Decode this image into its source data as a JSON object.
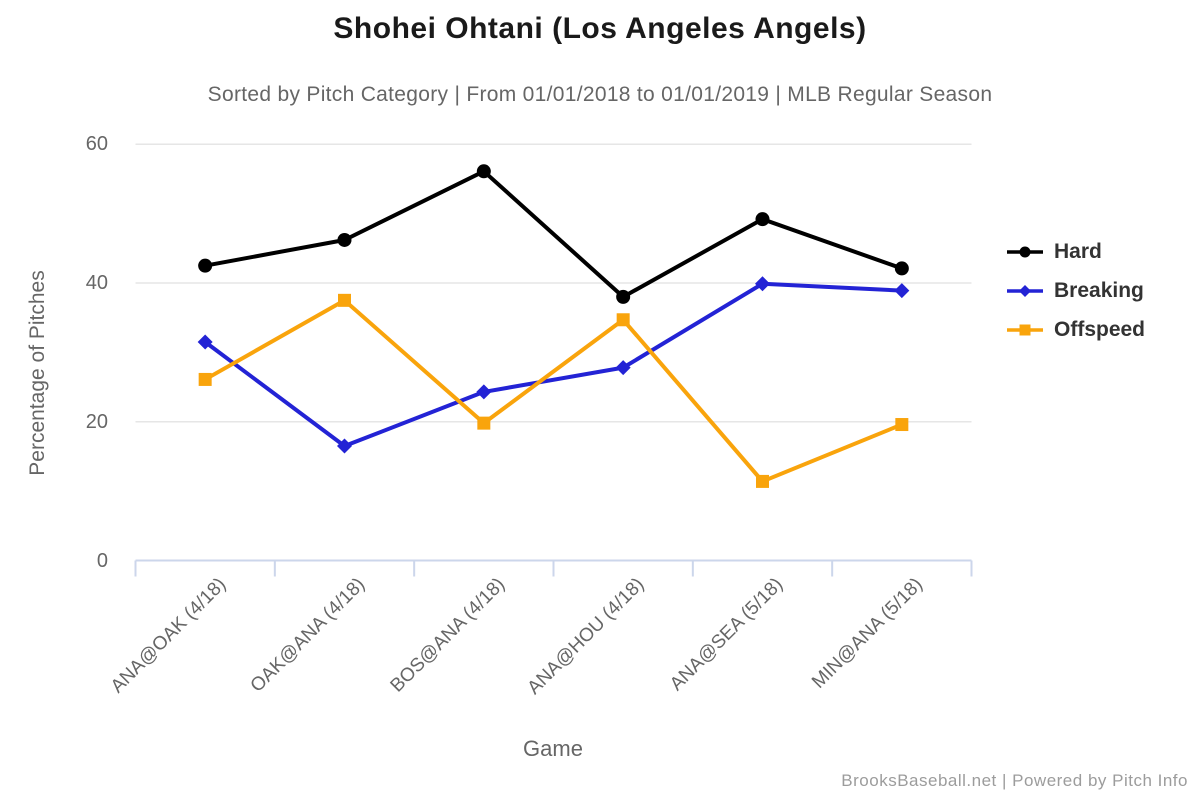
{
  "header": {
    "title": "Shohei Ohtani (Los Angeles Angels)",
    "subtitle": "Sorted by Pitch Category | From 01/01/2018 to 01/01/2019 | MLB Regular Season"
  },
  "footer": {
    "credit": "BrooksBaseball.net | Powered by Pitch Info"
  },
  "chart_data": {
    "type": "line",
    "title": "Shohei Ohtani (Los Angeles Angels)",
    "subtitle": "Sorted by Pitch Category | From 01/01/2018 to 01/01/2019 | MLB Regular Season",
    "xlabel": "Game",
    "ylabel": "Percentage of Pitches",
    "categories": [
      "ANA@OAK (4/18)",
      "OAK@ANA (4/18)",
      "BOS@ANA (4/18)",
      "ANA@HOU (4/18)",
      "ANA@SEA (5/18)",
      "MIN@ANA (5/18)"
    ],
    "series": [
      {
        "name": "Hard",
        "color": "#000000",
        "marker": "circle",
        "values": [
          42.5,
          46.2,
          56.1,
          38.0,
          49.2,
          42.1
        ]
      },
      {
        "name": "Breaking",
        "color": "#2323d5",
        "marker": "diamond",
        "values": [
          31.5,
          16.5,
          24.3,
          27.8,
          39.9,
          38.9
        ]
      },
      {
        "name": "Offspeed",
        "color": "#f9a40c",
        "marker": "square",
        "values": [
          26.1,
          37.5,
          19.8,
          34.7,
          11.4,
          19.6
        ]
      }
    ],
    "yticks": [
      0,
      20,
      40,
      60
    ],
    "ylim": [
      0,
      62
    ],
    "grid": "horizontal",
    "grid_color": "#e6e6e6",
    "axis_line_color": "#ccd6eb",
    "legend_position": "right"
  }
}
